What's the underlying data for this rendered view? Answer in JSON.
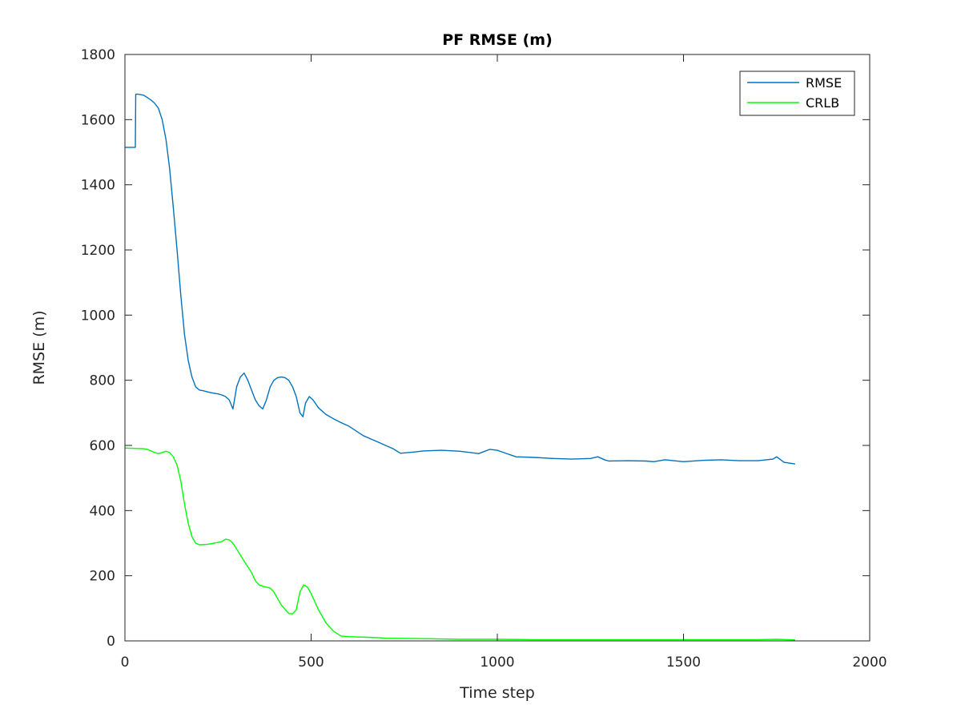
{
  "chart_data": {
    "type": "line",
    "title": "PF RMSE (m)",
    "xlabel": "Time step",
    "ylabel": "RMSE (m)",
    "xlim": [
      0,
      2000
    ],
    "ylim": [
      0,
      1800
    ],
    "xticks": [
      0,
      500,
      1000,
      1500,
      2000
    ],
    "yticks": [
      0,
      200,
      400,
      600,
      800,
      1000,
      1200,
      1400,
      1600,
      1800
    ],
    "xtick_labels": [
      "0",
      "500",
      "1000",
      "1500",
      "2000"
    ],
    "ytick_labels": [
      "0",
      "200",
      "400",
      "600",
      "800",
      "1000",
      "1200",
      "1400",
      "1600",
      "1800"
    ],
    "grid": false,
    "legend_position": "top-right",
    "series": [
      {
        "name": "RMSE",
        "color": "#0072BD",
        "x": [
          1,
          28,
          29,
          35,
          50,
          60,
          70,
          80,
          90,
          100,
          110,
          120,
          130,
          140,
          150,
          160,
          170,
          180,
          190,
          200,
          210,
          220,
          230,
          240,
          250,
          260,
          270,
          280,
          290,
          300,
          310,
          320,
          330,
          340,
          350,
          360,
          370,
          380,
          390,
          400,
          410,
          420,
          430,
          440,
          450,
          460,
          470,
          478,
          485,
          495,
          505,
          520,
          540,
          560,
          580,
          600,
          620,
          640,
          660,
          680,
          700,
          720,
          740,
          760,
          780,
          800,
          850,
          900,
          950,
          980,
          1000,
          1050,
          1100,
          1150,
          1200,
          1250,
          1270,
          1290,
          1300,
          1350,
          1400,
          1420,
          1450,
          1500,
          1550,
          1600,
          1650,
          1700,
          1740,
          1750,
          1770,
          1800
        ],
        "values": [
          1515,
          1515,
          1678,
          1678,
          1675,
          1668,
          1660,
          1650,
          1635,
          1600,
          1540,
          1450,
          1330,
          1200,
          1060,
          940,
          860,
          810,
          780,
          770,
          768,
          765,
          762,
          760,
          758,
          755,
          750,
          740,
          712,
          780,
          810,
          822,
          800,
          770,
          740,
          722,
          712,
          740,
          780,
          800,
          808,
          810,
          808,
          800,
          780,
          750,
          700,
          688,
          730,
          750,
          740,
          715,
          695,
          682,
          670,
          660,
          645,
          630,
          620,
          610,
          600,
          590,
          576,
          578,
          580,
          583,
          585,
          582,
          575,
          588,
          585,
          565,
          563,
          560,
          558,
          560,
          565,
          555,
          552,
          553,
          552,
          550,
          556,
          550,
          554,
          556,
          553,
          553,
          558,
          565,
          548,
          543
        ]
      },
      {
        "name": "CRLB",
        "color": "#00FF00",
        "x": [
          1,
          50,
          60,
          80,
          90,
          100,
          110,
          120,
          130,
          140,
          150,
          160,
          170,
          180,
          190,
          200,
          220,
          240,
          260,
          270,
          280,
          290,
          300,
          320,
          340,
          350,
          360,
          370,
          380,
          390,
          400,
          420,
          440,
          450,
          460,
          470,
          480,
          490,
          500,
          520,
          540,
          560,
          580,
          600,
          650,
          680,
          700,
          800,
          900,
          1000,
          1100,
          1200,
          1300,
          1400,
          1500,
          1600,
          1700,
          1750,
          1800
        ],
        "values": [
          592,
          590,
          588,
          578,
          575,
          578,
          582,
          578,
          565,
          540,
          490,
          420,
          360,
          320,
          300,
          295,
          296,
          300,
          305,
          312,
          310,
          300,
          282,
          245,
          210,
          185,
          172,
          168,
          165,
          162,
          150,
          110,
          84,
          83,
          95,
          150,
          172,
          165,
          145,
          95,
          55,
          30,
          15,
          13,
          11,
          10,
          8,
          7,
          5,
          5,
          4,
          4,
          4,
          4,
          4,
          4,
          4,
          5,
          3
        ]
      }
    ]
  }
}
